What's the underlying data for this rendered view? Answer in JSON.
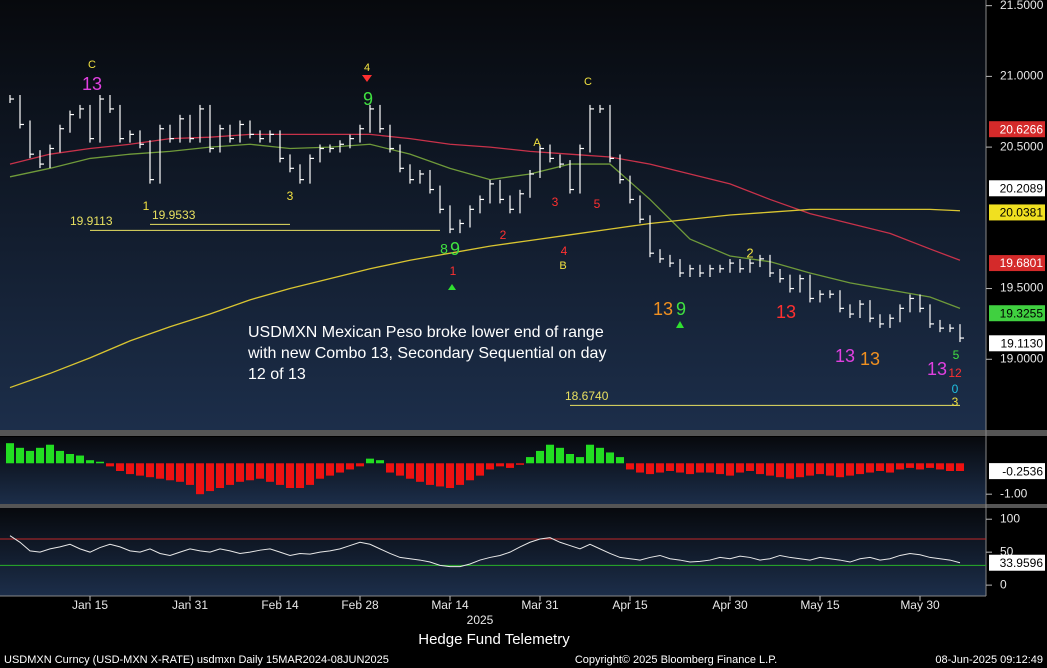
{
  "title": "Hedge Fund Telemetry",
  "footer": {
    "left": "USDMXN Curncy (USD-MXN X-RATE) usdmxn  Daily 15MAR2024-08JUN2025",
    "center": "Copyright© 2025 Bloomberg Finance L.P.",
    "right": "08-Jun-2025 09:12:49"
  },
  "chart_data": [
    {
      "type": "ohlc",
      "color": "#ffffff",
      "values": [
        20.84,
        20.66,
        20.45,
        20.38,
        20.49,
        20.63,
        20.73,
        20.77,
        20.56,
        20.84,
        20.77,
        20.56,
        20.59,
        20.52,
        20.27,
        20.63,
        20.56,
        20.7,
        20.56,
        20.77,
        20.49,
        20.63,
        20.56,
        20.66,
        20.59,
        20.56,
        20.59,
        20.42,
        20.35,
        20.27,
        20.42,
        20.49,
        20.49,
        20.52,
        20.56,
        20.63,
        20.77,
        20.63,
        20.49,
        20.35,
        20.27,
        20.31,
        20.2,
        20.06,
        19.92,
        19.96,
        20.06,
        20.13,
        20.24,
        20.13,
        20.06,
        20.17,
        20.31,
        20.49,
        20.42,
        20.38,
        20.2,
        20.49,
        20.77,
        20.77,
        20.42,
        20.27,
        20.13,
        19.99,
        19.75,
        19.71,
        19.68,
        19.61,
        19.64,
        19.61,
        19.64,
        19.64,
        19.68,
        19.64,
        19.68,
        19.71,
        19.61,
        19.57,
        19.5,
        19.57,
        19.43,
        19.46,
        19.46,
        19.36,
        19.32,
        19.39,
        19.29,
        19.25,
        19.29,
        19.36,
        19.43,
        19.36,
        19.25,
        19.22,
        19.22,
        19.15
      ],
      "overlays": [
        {
          "color": "#6f9a3a",
          "x": [
            0,
            4,
            8,
            12,
            16,
            20,
            24,
            28,
            32,
            36,
            40,
            44,
            48,
            52,
            56,
            60,
            64,
            68,
            72,
            76,
            80,
            84,
            88,
            92,
            95
          ],
          "values": [
            20.29,
            20.35,
            20.42,
            20.45,
            20.47,
            20.5,
            20.52,
            20.49,
            20.5,
            20.52,
            20.45,
            20.35,
            20.27,
            20.31,
            20.38,
            20.38,
            20.13,
            19.85,
            19.73,
            19.69,
            19.61,
            19.54,
            19.49,
            19.44,
            19.36
          ]
        },
        {
          "color": "#c8324a",
          "x": [
            0,
            4,
            8,
            12,
            16,
            20,
            24,
            28,
            32,
            36,
            40,
            44,
            48,
            52,
            56,
            60,
            64,
            68,
            72,
            76,
            80,
            84,
            88,
            92,
            95
          ],
          "values": [
            20.38,
            20.45,
            20.49,
            20.52,
            20.56,
            20.57,
            20.59,
            20.59,
            20.59,
            20.59,
            20.56,
            20.52,
            20.5,
            20.47,
            20.45,
            20.43,
            20.38,
            20.31,
            20.24,
            20.13,
            20.03,
            19.96,
            19.89,
            19.78,
            19.7
          ]
        },
        {
          "color": "#d9c531",
          "x": [
            0,
            4,
            8,
            12,
            16,
            20,
            24,
            28,
            32,
            36,
            40,
            44,
            48,
            52,
            56,
            60,
            64,
            68,
            72,
            76,
            80,
            84,
            88,
            92,
            95
          ],
          "values": [
            18.8,
            18.9,
            19.01,
            19.13,
            19.23,
            19.32,
            19.42,
            19.5,
            19.57,
            19.64,
            19.7,
            19.75,
            19.8,
            19.84,
            19.88,
            19.92,
            19.96,
            19.99,
            20.02,
            20.04,
            20.06,
            20.06,
            20.06,
            20.06,
            20.05
          ]
        }
      ],
      "ylim": [
        18.5,
        21.54
      ],
      "yticks": [
        {
          "value": 21.5,
          "label": "21.5000"
        },
        {
          "value": 21.0,
          "label": "21.0000"
        },
        {
          "value": 20.5,
          "label": "20.5000"
        },
        {
          "value": 19.5,
          "label": "19.5000"
        },
        {
          "value": 19.0,
          "label": "19.0000"
        }
      ],
      "price_tags": [
        {
          "value": 20.6266,
          "label": "20.6266",
          "color": "#d42a2a",
          "text_color": "#ffffff"
        },
        {
          "value": 20.2089,
          "label": "20.2089",
          "color": "#ffffff",
          "text_color": "#000000"
        },
        {
          "value": 20.0381,
          "label": "20.0381",
          "color": "#f0e020",
          "text_color": "#000000"
        },
        {
          "value": 19.6801,
          "label": "19.6801",
          "color": "#d42a2a",
          "text_color": "#ffffff"
        },
        {
          "value": 19.3255,
          "label": "19.3255",
          "color": "#40d040",
          "text_color": "#000000"
        },
        {
          "value": 19.113,
          "label": "19.1130",
          "color": "#ffffff",
          "text_color": "#000000"
        }
      ],
      "levels": [
        {
          "value": 19.9113,
          "label": "19.9113",
          "color": "#e8e060"
        },
        {
          "value": 19.9533,
          "label": "19.9533",
          "color": "#e8e060"
        },
        {
          "value": 18.674,
          "label": "18.6740",
          "color": "#e8e060"
        }
      ],
      "annotation": [
        "USDMXN Mexican Peso broke lower end of range",
        "with new Combo 13, Secondary Sequential on day",
        "12 of 13"
      ],
      "markers": [
        {
          "text": "13",
          "color": "#e040e0"
        },
        {
          "text": "C",
          "color": "#f0e040"
        },
        {
          "text": "4",
          "color": "#f0e040"
        },
        {
          "text": "9",
          "color": "#40e040"
        },
        {
          "text": "C",
          "color": "#f0e040"
        },
        {
          "text": "A",
          "color": "#f0e040"
        },
        {
          "text": "B",
          "color": "#f0e040"
        },
        {
          "text": "8",
          "color": "#40e040"
        },
        {
          "text": "9",
          "color": "#40e040"
        },
        {
          "text": "1",
          "color": "#ff3030"
        },
        {
          "text": "13",
          "color": "#f09020"
        },
        {
          "text": "9",
          "color": "#40e040"
        },
        {
          "text": "13",
          "color": "#ff3030"
        },
        {
          "text": "13",
          "color": "#e040e0"
        },
        {
          "text": "13",
          "color": "#f09020"
        },
        {
          "text": "13",
          "color": "#e040e0"
        },
        {
          "text": "12",
          "color": "#ff3030"
        },
        {
          "text": "5",
          "color": "#40e040"
        },
        {
          "text": "0",
          "color": "#20c0e0"
        },
        {
          "text": "3",
          "color": "#f0e040"
        },
        {
          "text": "1",
          "color": "#f0e040"
        },
        {
          "text": "3",
          "color": "#f0e040"
        },
        {
          "text": "2",
          "color": "#ff3030"
        },
        {
          "text": "3",
          "color": "#ff3030"
        },
        {
          "text": "5",
          "color": "#ff3030"
        },
        {
          "text": "4",
          "color": "#ff3030"
        },
        {
          "text": "2",
          "color": "#f0e040"
        }
      ]
    },
    {
      "type": "histogram",
      "values": [
        0.65,
        0.5,
        0.4,
        0.5,
        0.6,
        0.4,
        0.3,
        0.25,
        0.1,
        0.05,
        -0.1,
        -0.25,
        -0.35,
        -0.4,
        -0.45,
        -0.5,
        -0.55,
        -0.6,
        -0.7,
        -1.0,
        -0.9,
        -0.8,
        -0.7,
        -0.6,
        -0.55,
        -0.5,
        -0.6,
        -0.7,
        -0.8,
        -0.8,
        -0.7,
        -0.5,
        -0.4,
        -0.3,
        -0.2,
        -0.1,
        0.15,
        0.1,
        -0.3,
        -0.4,
        -0.5,
        -0.6,
        -0.7,
        -0.75,
        -0.8,
        -0.7,
        -0.55,
        -0.4,
        -0.2,
        -0.1,
        -0.15,
        -0.05,
        0.2,
        0.4,
        0.6,
        0.5,
        0.3,
        0.2,
        0.6,
        0.5,
        0.35,
        0.2,
        -0.2,
        -0.3,
        -0.35,
        -0.3,
        -0.25,
        -0.3,
        -0.35,
        -0.3,
        -0.3,
        -0.35,
        -0.4,
        -0.3,
        -0.25,
        -0.35,
        -0.4,
        -0.45,
        -0.5,
        -0.45,
        -0.4,
        -0.35,
        -0.4,
        -0.45,
        -0.4,
        -0.35,
        -0.3,
        -0.25,
        -0.3,
        -0.2,
        -0.15,
        -0.2,
        -0.15,
        -0.2,
        -0.25,
        -0.25
      ],
      "positive_color": "#22dd22",
      "negative_color": "#ee1111",
      "ylim": [
        -1.35,
        0.85
      ],
      "yticks": [
        {
          "value": -1.0,
          "label": "-1.00"
        }
      ],
      "price_tags": [
        {
          "value": -0.2536,
          "label": "-0.2536",
          "color": "#ffffff",
          "text_color": "#000000"
        }
      ]
    },
    {
      "type": "line",
      "color": "#e8e8e8",
      "values": [
        75,
        65,
        52,
        50,
        55,
        58,
        62,
        55,
        50,
        57,
        62,
        58,
        52,
        50,
        55,
        48,
        45,
        50,
        55,
        52,
        50,
        55,
        52,
        48,
        50,
        53,
        55,
        50,
        45,
        48,
        47,
        50,
        52,
        55,
        60,
        65,
        62,
        55,
        48,
        42,
        40,
        38,
        35,
        30,
        28,
        28,
        32,
        38,
        42,
        45,
        50,
        58,
        65,
        70,
        72,
        65,
        60,
        55,
        62,
        55,
        48,
        42,
        40,
        38,
        42,
        45,
        40,
        38,
        35,
        36,
        38,
        42,
        40,
        44,
        42,
        38,
        40,
        45,
        42,
        40,
        38,
        42,
        40,
        38,
        35,
        40,
        42,
        38,
        40,
        45,
        48,
        46,
        42,
        40,
        38,
        34
      ],
      "bands": [
        {
          "value": 70,
          "color": "#c02828"
        },
        {
          "value": 30,
          "color": "#28b028"
        }
      ],
      "ylim": [
        -15,
        117
      ],
      "yticks": [
        100,
        50,
        0
      ],
      "price_tags": [
        {
          "value": 33.9596,
          "label": "33.9596",
          "color": "#ffffff",
          "text_color": "#000000"
        }
      ],
      "x_label": "2025",
      "categories": [
        null,
        null,
        null,
        null,
        null,
        null,
        null,
        null,
        "Jan 15",
        null,
        null,
        null,
        null,
        null,
        null,
        null,
        null,
        null,
        "Jan 31",
        null,
        null,
        null,
        null,
        null,
        null,
        null,
        null,
        "Feb 14",
        null,
        null,
        null,
        null,
        null,
        null,
        null,
        "Feb 28",
        null,
        null,
        null,
        null,
        null,
        null,
        null,
        null,
        "Mar 14",
        null,
        null,
        null,
        null,
        null,
        null,
        null,
        null,
        "Mar 31",
        null,
        null,
        null,
        null,
        null,
        null,
        null,
        null,
        "Apr 15",
        null,
        null,
        null,
        null,
        null,
        null,
        null,
        null,
        null,
        "Apr 30",
        null,
        null,
        null,
        null,
        null,
        null,
        null,
        null,
        "May 15",
        null,
        null,
        null,
        null,
        null,
        null,
        null,
        null,
        null,
        "May 30",
        null,
        null,
        null,
        null
      ]
    }
  ]
}
